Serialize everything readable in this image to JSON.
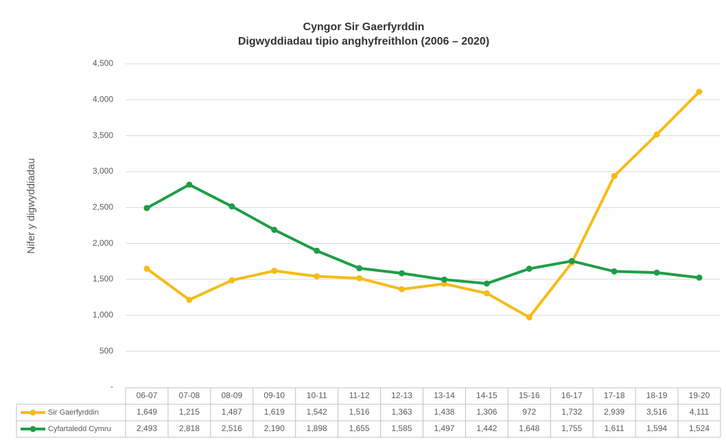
{
  "chart_data": {
    "type": "line",
    "title": "Cyngor Sir Gaerfyrddin",
    "subtitle": "Digwyddiadau tipio anghyfreithlon (2006 – 2020)",
    "y_label": "Nifer y digwyddiadau",
    "categories": [
      "06-07",
      "07-08",
      "08-09",
      "09-10",
      "10-11",
      "11-12",
      "12-13",
      "13-14",
      "14-15",
      "15-16",
      "16-17",
      "17-18",
      "18-19",
      "19-20"
    ],
    "series": [
      {
        "name": "Sir Gaerfyrddin",
        "color": "#f6bb19",
        "values": [
          1649,
          1215,
          1487,
          1619,
          1542,
          1516,
          1363,
          1438,
          1306,
          972,
          1732,
          2939,
          3516,
          4111
        ],
        "value_labels": [
          "1,649",
          "1,215",
          "1,487",
          "1,619",
          "1,542",
          "1,516",
          "1,363",
          "1,438",
          "1,306",
          "972",
          "1,732",
          "2,939",
          "3,516",
          "4,111"
        ]
      },
      {
        "name": "Cyfartaledd Cymru",
        "color": "#1f9d48",
        "values": [
          2493,
          2818,
          2516,
          2190,
          1898,
          1655,
          1585,
          1497,
          1442,
          1648,
          1755,
          1611,
          1594,
          1524
        ],
        "value_labels": [
          "2,493",
          "2,818",
          "2,516",
          "2,190",
          "1,898",
          "1,655",
          "1,585",
          "1,497",
          "1,442",
          "1,648",
          "1,755",
          "1,611",
          "1,594",
          "1,524"
        ]
      }
    ],
    "ylim": [
      0,
      4500
    ],
    "yticks": [
      {
        "value": 0,
        "label": "-"
      },
      500,
      {
        "value": 1000,
        "label": "1,000"
      },
      {
        "value": 1500,
        "label": "1,500"
      },
      {
        "value": 2000,
        "label": "2,000"
      },
      {
        "value": 2500,
        "label": "2,500"
      },
      {
        "value": 3000,
        "label": "3,000"
      },
      {
        "value": 3500,
        "label": "3,500"
      },
      {
        "value": 4000,
        "label": "4,000"
      },
      {
        "value": 4500,
        "label": "4,500"
      }
    ],
    "grid": true
  }
}
